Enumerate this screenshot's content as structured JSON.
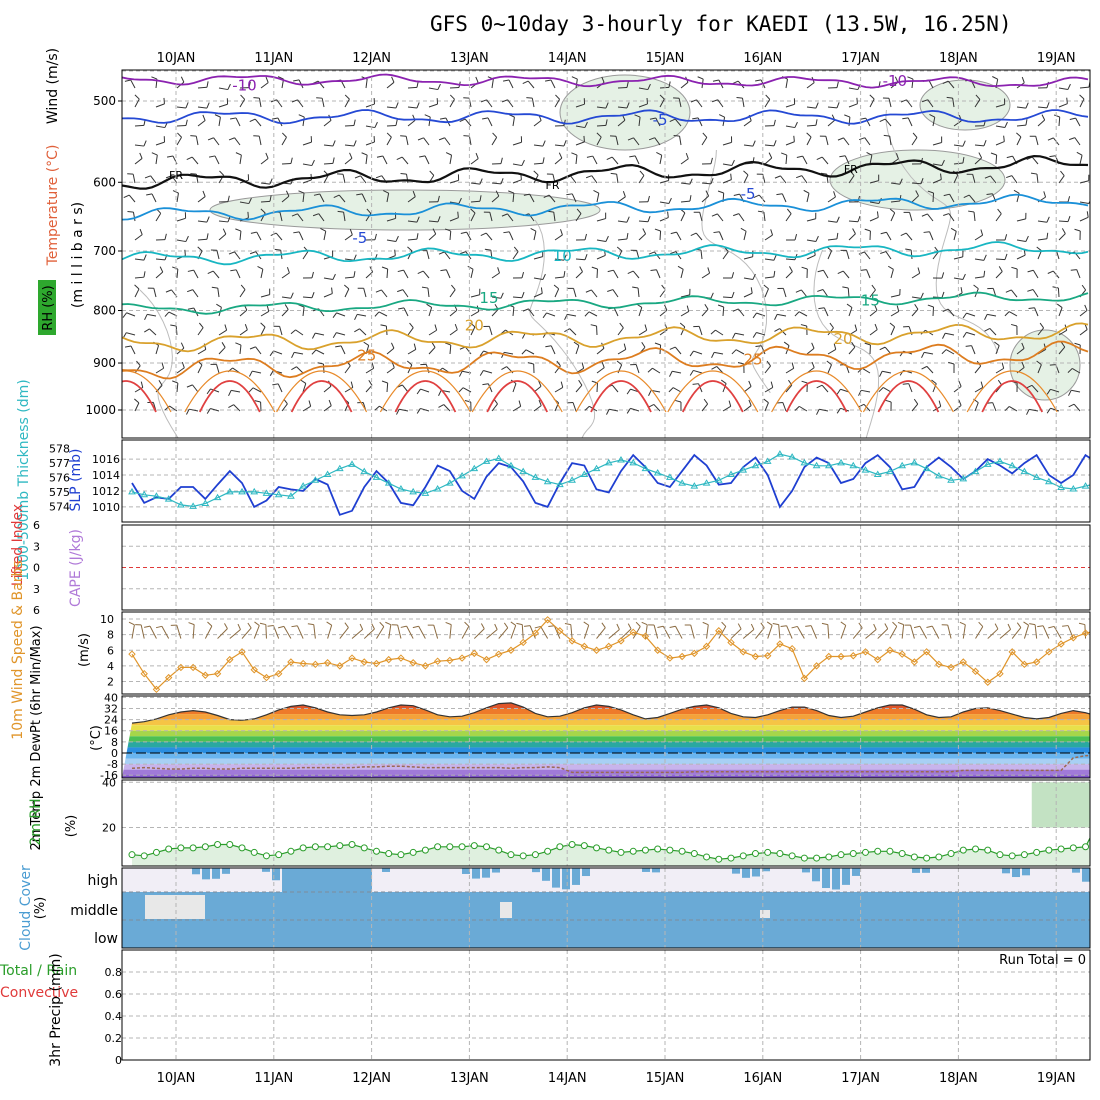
{
  "title": "GFS 0~10day 3-hourly for KAEDI (13.5W, 16.25N)",
  "days": [
    "10JAN",
    "11JAN",
    "12JAN",
    "13JAN",
    "14JAN",
    "15JAN",
    "16JAN",
    "17JAN",
    "18JAN",
    "19JAN"
  ],
  "run_total": "Run Total = 0",
  "colors": {
    "slp": "#1f3fd1",
    "thickness": "#2fb8c2",
    "wind10m": "#e0952a",
    "rh2m": "#2a9d2a",
    "cloud": "#6aaad6",
    "dewpoint": "#9a6a52",
    "temp_fill": "#e87a2a",
    "lifted": "#e03a3a"
  },
  "chart_data": [
    {
      "type": "line",
      "panel": "upper-air",
      "ylabel_parts": [
        "Wind (m/s)",
        "Temperature (°C)",
        "RH (%)"
      ],
      "ylabel2": "(m i l l i b a r s)",
      "yticks": [
        500,
        600,
        700,
        800,
        900,
        1000
      ],
      "ylim": [
        1000,
        455
      ],
      "y_scale": "log-pressure",
      "isotherm_labels": [
        {
          "text": "-10",
          "day": 0.7,
          "p": 483
        },
        {
          "text": "-10",
          "day": 7.35,
          "p": 478
        },
        {
          "text": "-5",
          "day": 4.95,
          "p": 522
        },
        {
          "text": "FR",
          "day": 0.0,
          "p": 589
        },
        {
          "text": "FR",
          "day": 3.85,
          "p": 602
        },
        {
          "text": "FR",
          "day": 6.9,
          "p": 581
        },
        {
          "text": "-5",
          "day": 5.85,
          "p": 616
        },
        {
          "text": "-5",
          "day": 1.88,
          "p": 680
        },
        {
          "text": "10",
          "day": 3.95,
          "p": 708
        },
        {
          "text": "15",
          "day": 3.2,
          "p": 778
        },
        {
          "text": "15",
          "day": 7.1,
          "p": 782
        },
        {
          "text": "20",
          "day": 3.05,
          "p": 827
        },
        {
          "text": "20",
          "day": 6.82,
          "p": 853
        },
        {
          "text": "25",
          "day": 1.95,
          "p": 885
        },
        {
          "text": "25",
          "day": 5.9,
          "p": 893
        }
      ],
      "isotherms": [
        {
          "name": "-10",
          "color": "#8b22b0",
          "p_start": 476,
          "p_end": 480,
          "amp": 4
        },
        {
          "name": "-5",
          "color": "#2549d4",
          "p_start": 518,
          "p_end": 518,
          "amp": 5
        },
        {
          "name": "FR",
          "color": "#111111",
          "p_start": 600,
          "p_end": 575,
          "amp": 6
        },
        {
          "name": "0",
          "color": "#1a90d8",
          "p_start": 645,
          "p_end": 625,
          "amp": 5
        },
        {
          "name": "10",
          "color": "#18b6c2",
          "p_start": 712,
          "p_end": 695,
          "amp": 5
        },
        {
          "name": "15",
          "color": "#19a882",
          "p_start": 798,
          "p_end": 775,
          "amp": 4
        },
        {
          "name": "20",
          "color": "#d9a12c",
          "p_start": 860,
          "p_end": 840,
          "amp": 7
        },
        {
          "name": "25",
          "color": "#dd7d20",
          "p_start": 910,
          "p_end": 880,
          "amp": 9
        }
      ]
    },
    {
      "type": "line",
      "panel": "slp-thickness",
      "ylabel_left": "1000-500mb Thickness (dm)",
      "ylabel_right": "SLP (mb)",
      "left_ticks": [
        574,
        575,
        576,
        577,
        578
      ],
      "right_ticks": [
        1010,
        1012,
        1014,
        1016
      ],
      "ylim_thickness": [
        573.2,
        578.3
      ],
      "ylim_slp": [
        1008.6,
        1017.9
      ],
      "series": [
        {
          "name": "SLP (mb)",
          "x_start_day": -0.45,
          "x_step_day": 0.125,
          "values": [
            1013.0,
            1010.5,
            1011.2,
            1011.0,
            1012.5,
            1012.5,
            1011.0,
            1012.8,
            1014.5,
            1013.0,
            1010.0,
            1010.8,
            1012.5,
            1012.2,
            1012.0,
            1013.5,
            1012.8,
            1009.0,
            1009.5,
            1012.5,
            1014.5,
            1013.0,
            1010.5,
            1010.2,
            1012.5,
            1015.2,
            1014.5,
            1012.0,
            1011.0,
            1013.8,
            1015.5,
            1015.0,
            1013.2,
            1010.5,
            1010.0,
            1013.0,
            1015.5,
            1015.2,
            1012.2,
            1011.8,
            1014.5,
            1016.5,
            1015.0,
            1013.0,
            1012.5,
            1014.5,
            1016.5,
            1015.2,
            1012.8,
            1013.0,
            1015.0,
            1016.2,
            1014.0,
            1010.0,
            1012.0,
            1015.0,
            1016.2,
            1015.5,
            1013.0,
            1013.5,
            1015.5,
            1016.5,
            1015.0,
            1012.2,
            1012.5,
            1015.0,
            1016.2,
            1015.0,
            1013.5,
            1014.5,
            1016.0,
            1015.2,
            1014.2,
            1015.5,
            1016.5,
            1014.0,
            1013.0,
            1014.0,
            1016.5,
            1015.5,
            1014.0,
            1013.8,
            1014.0,
            1016.2,
            1015.8,
            1015.2
          ]
        },
        {
          "name": "1000-500mb Thickness (dm)",
          "x_start_day": -0.45,
          "x_step_day": 0.125,
          "values": [
            575.0,
            574.8,
            574.7,
            574.5,
            574.1,
            574.0,
            574.2,
            574.6,
            575.0,
            575.0,
            575.0,
            574.9,
            574.8,
            574.7,
            575.4,
            575.8,
            576.2,
            576.6,
            576.9,
            576.4,
            576.0,
            575.6,
            575.2,
            575.0,
            574.9,
            575.2,
            575.6,
            576.1,
            576.6,
            577.1,
            577.3,
            576.8,
            576.4,
            576.0,
            575.7,
            575.5,
            575.8,
            576.2,
            576.6,
            577.0,
            577.2,
            577.0,
            576.6,
            576.3,
            576.0,
            575.6,
            575.4,
            575.6,
            575.8,
            576.2,
            576.5,
            576.8,
            577.1,
            577.6,
            577.4,
            577.0,
            576.8,
            576.8,
            577.0,
            576.8,
            576.5,
            576.2,
            576.4,
            576.8,
            577.0,
            576.6,
            576.1,
            575.8,
            575.9,
            576.4,
            576.9,
            577.1,
            576.8,
            576.4,
            576.0,
            575.7,
            575.3,
            575.2,
            575.4,
            575.6,
            575.3,
            574.9,
            574.6,
            574.4,
            574.5,
            574.8
          ]
        }
      ]
    },
    {
      "type": "line",
      "panel": "lifted-cape",
      "ylabel_left": "Lifted Index",
      "ylabel_right": "CAPE (J/kg)",
      "yticks": [
        -6,
        -3,
        0,
        3,
        6
      ],
      "tick_labels": [
        "6",
        "3",
        "0",
        "3",
        "6"
      ],
      "zero_line": 0
    },
    {
      "type": "line",
      "panel": "wind-10m",
      "ylabel": "10m Wind Speed & Barbs",
      "yunit": "(m/s)",
      "yticks": [
        2,
        4,
        6,
        8,
        10
      ],
      "ylim": [
        0.4,
        10.9
      ],
      "series": [
        {
          "name": "10m Wind Speed",
          "x_start_day": -0.45,
          "x_step_day": 0.125,
          "values": [
            5.5,
            3.0,
            1.0,
            2.5,
            3.8,
            3.8,
            2.8,
            3.0,
            4.8,
            5.8,
            3.5,
            2.5,
            3.0,
            4.5,
            4.3,
            4.2,
            4.4,
            4.0,
            5.0,
            4.5,
            4.3,
            4.8,
            5.0,
            4.4,
            4.0,
            4.6,
            4.7,
            5.0,
            5.6,
            4.8,
            5.5,
            6.0,
            7.0,
            8.2,
            9.9,
            8.5,
            7.2,
            6.5,
            6.0,
            6.5,
            7.2,
            8.3,
            7.8,
            6.0,
            5.0,
            5.2,
            5.6,
            6.5,
            8.5,
            7.0,
            5.8,
            5.2,
            5.3,
            6.8,
            6.2,
            2.4,
            4.0,
            5.2,
            5.2,
            5.3,
            5.8,
            4.8,
            6.0,
            5.5,
            4.5,
            5.8,
            4.2,
            3.8,
            4.5,
            3.3,
            1.9,
            3.0,
            5.8,
            4.2,
            4.5,
            5.8,
            6.8,
            7.6,
            8.2,
            8.5,
            8.0,
            7.0,
            5.0,
            4.4,
            5.0,
            6.4
          ]
        }
      ]
    },
    {
      "type": "area",
      "panel": "temp-2m",
      "ylabel": "2m Temp 2m DewPt (6hr Min/Max)",
      "yunit": "(°C)",
      "yticks": [
        -16,
        -8,
        0,
        8,
        16,
        24,
        32,
        40
      ],
      "ylim": [
        -18,
        41
      ],
      "series": [
        {
          "name": "2m Temp",
          "x_start_day": -0.45,
          "x_step_day": 0.125,
          "values": [
            21.5,
            22.5,
            24.5,
            27.5,
            29.5,
            30.5,
            29.5,
            27.0,
            24.0,
            23.5,
            24.5,
            27.5,
            31.0,
            33.5,
            34.5,
            32.5,
            29.5,
            27.5,
            27.0,
            27.5,
            29.5,
            32.5,
            34.5,
            34.0,
            31.0,
            27.5,
            26.0,
            26.5,
            29.0,
            32.5,
            35.5,
            36.0,
            33.0,
            28.5,
            26.0,
            26.5,
            29.0,
            32.5,
            34.5,
            33.5,
            31.0,
            27.5,
            24.5,
            25.5,
            28.5,
            31.5,
            33.5,
            34.5,
            32.5,
            28.5,
            26.0,
            25.5,
            27.5,
            30.5,
            33.0,
            33.0,
            30.5,
            27.0,
            25.5,
            26.5,
            29.5,
            32.5,
            34.5,
            34.5,
            31.5,
            27.5,
            25.5,
            26.0,
            29.5,
            32.0,
            32.5,
            30.5,
            28.0,
            25.5,
            24.5,
            25.5,
            28.5,
            30.5,
            29.0,
            26.5,
            23.5,
            22.5,
            22.0,
            21.5,
            21.0,
            20.5
          ]
        },
        {
          "name": "2m DewPt",
          "x_start_day": -0.45,
          "x_step_day": 0.125,
          "values": [
            -11.0,
            -10.5,
            -11.0,
            -11.5,
            -11.5,
            -11.0,
            -11.0,
            -11.5,
            -11.5,
            -11.0,
            -11.0,
            -11.0,
            -11.0,
            -11.0,
            -10.5,
            -10.5,
            -10.5,
            -10.5,
            -10.5,
            -10.0,
            -10.0,
            -9.5,
            -9.5,
            -10.0,
            -10.5,
            -10.5,
            -10.5,
            -10.5,
            -10.5,
            -10.5,
            -10.5,
            -11.0,
            -10.5,
            -10.5,
            -10.0,
            -10.5,
            -14.0,
            -14.0,
            -14.0,
            -14.0,
            -14.0,
            -14.0,
            -14.0,
            -14.0,
            -14.0,
            -14.0,
            -13.5,
            -13.5,
            -13.5,
            -13.5,
            -13.5,
            -13.5,
            -13.5,
            -13.5,
            -13.5,
            -13.5,
            -13.5,
            -13.5,
            -13.5,
            -13.5,
            -13.5,
            -13.5,
            -13.5,
            -13.5,
            -13.5,
            -13.5,
            -13.5,
            -13.5,
            -12.5,
            -12.5,
            -12.5,
            -12.5,
            -12.5,
            -12.5,
            -12.5,
            -12.5,
            -12.5,
            -3.5,
            -2.0,
            -1.5,
            -1.0,
            -1.0,
            -1.0,
            -1.0,
            -1.0,
            -1.5
          ]
        }
      ]
    },
    {
      "type": "area",
      "panel": "rh-2m",
      "ylabel": "2m RH",
      "yunit": "(%)",
      "yticks": [
        20,
        40
      ],
      "ylim": [
        3,
        41
      ],
      "series": [
        {
          "name": "2m RH",
          "x_start_day": -0.45,
          "x_step_day": 0.125,
          "values": [
            8.0,
            7.5,
            9.0,
            10.5,
            11.0,
            11.0,
            11.5,
            12.5,
            12.5,
            11.0,
            9.0,
            7.5,
            8.0,
            9.5,
            11.0,
            11.5,
            11.5,
            12.0,
            12.5,
            11.0,
            9.5,
            8.5,
            8.0,
            9.0,
            10.0,
            11.5,
            11.5,
            11.5,
            12.0,
            11.5,
            10.0,
            8.0,
            7.5,
            8.0,
            9.5,
            11.5,
            12.5,
            12.0,
            11.0,
            10.0,
            9.0,
            9.5,
            10.0,
            10.5,
            10.0,
            9.5,
            8.5,
            7.0,
            6.0,
            6.5,
            7.5,
            8.5,
            9.0,
            8.5,
            7.5,
            6.5,
            6.5,
            7.0,
            8.0,
            8.5,
            9.0,
            9.5,
            9.5,
            8.5,
            7.0,
            6.5,
            7.0,
            8.5,
            10.0,
            10.5,
            10.0,
            8.0,
            7.5,
            8.0,
            9.0,
            10.0,
            10.5,
            11.0,
            11.5,
            22.0,
            17.5,
            23.5,
            33.0,
            37.0,
            38.5,
            37.0
          ]
        }
      ]
    },
    {
      "type": "bar",
      "panel": "cloud-cover",
      "ylabel": "Cloud Cover",
      "yunit": "(%)",
      "level_labels": [
        "high",
        "middle",
        "low"
      ]
    },
    {
      "type": "bar",
      "panel": "precip-3hr",
      "ylabel": "3hr Precip (mm)",
      "legend_total": "Total / Rain",
      "legend_convective": "Convective",
      "yticks": [
        0,
        0.2,
        0.4,
        0.6,
        0.8
      ],
      "tick_labels": [
        "0",
        "0.2",
        "0.4",
        "0.6",
        "0.8"
      ],
      "ylim": [
        0,
        1.0
      ],
      "values": []
    }
  ]
}
